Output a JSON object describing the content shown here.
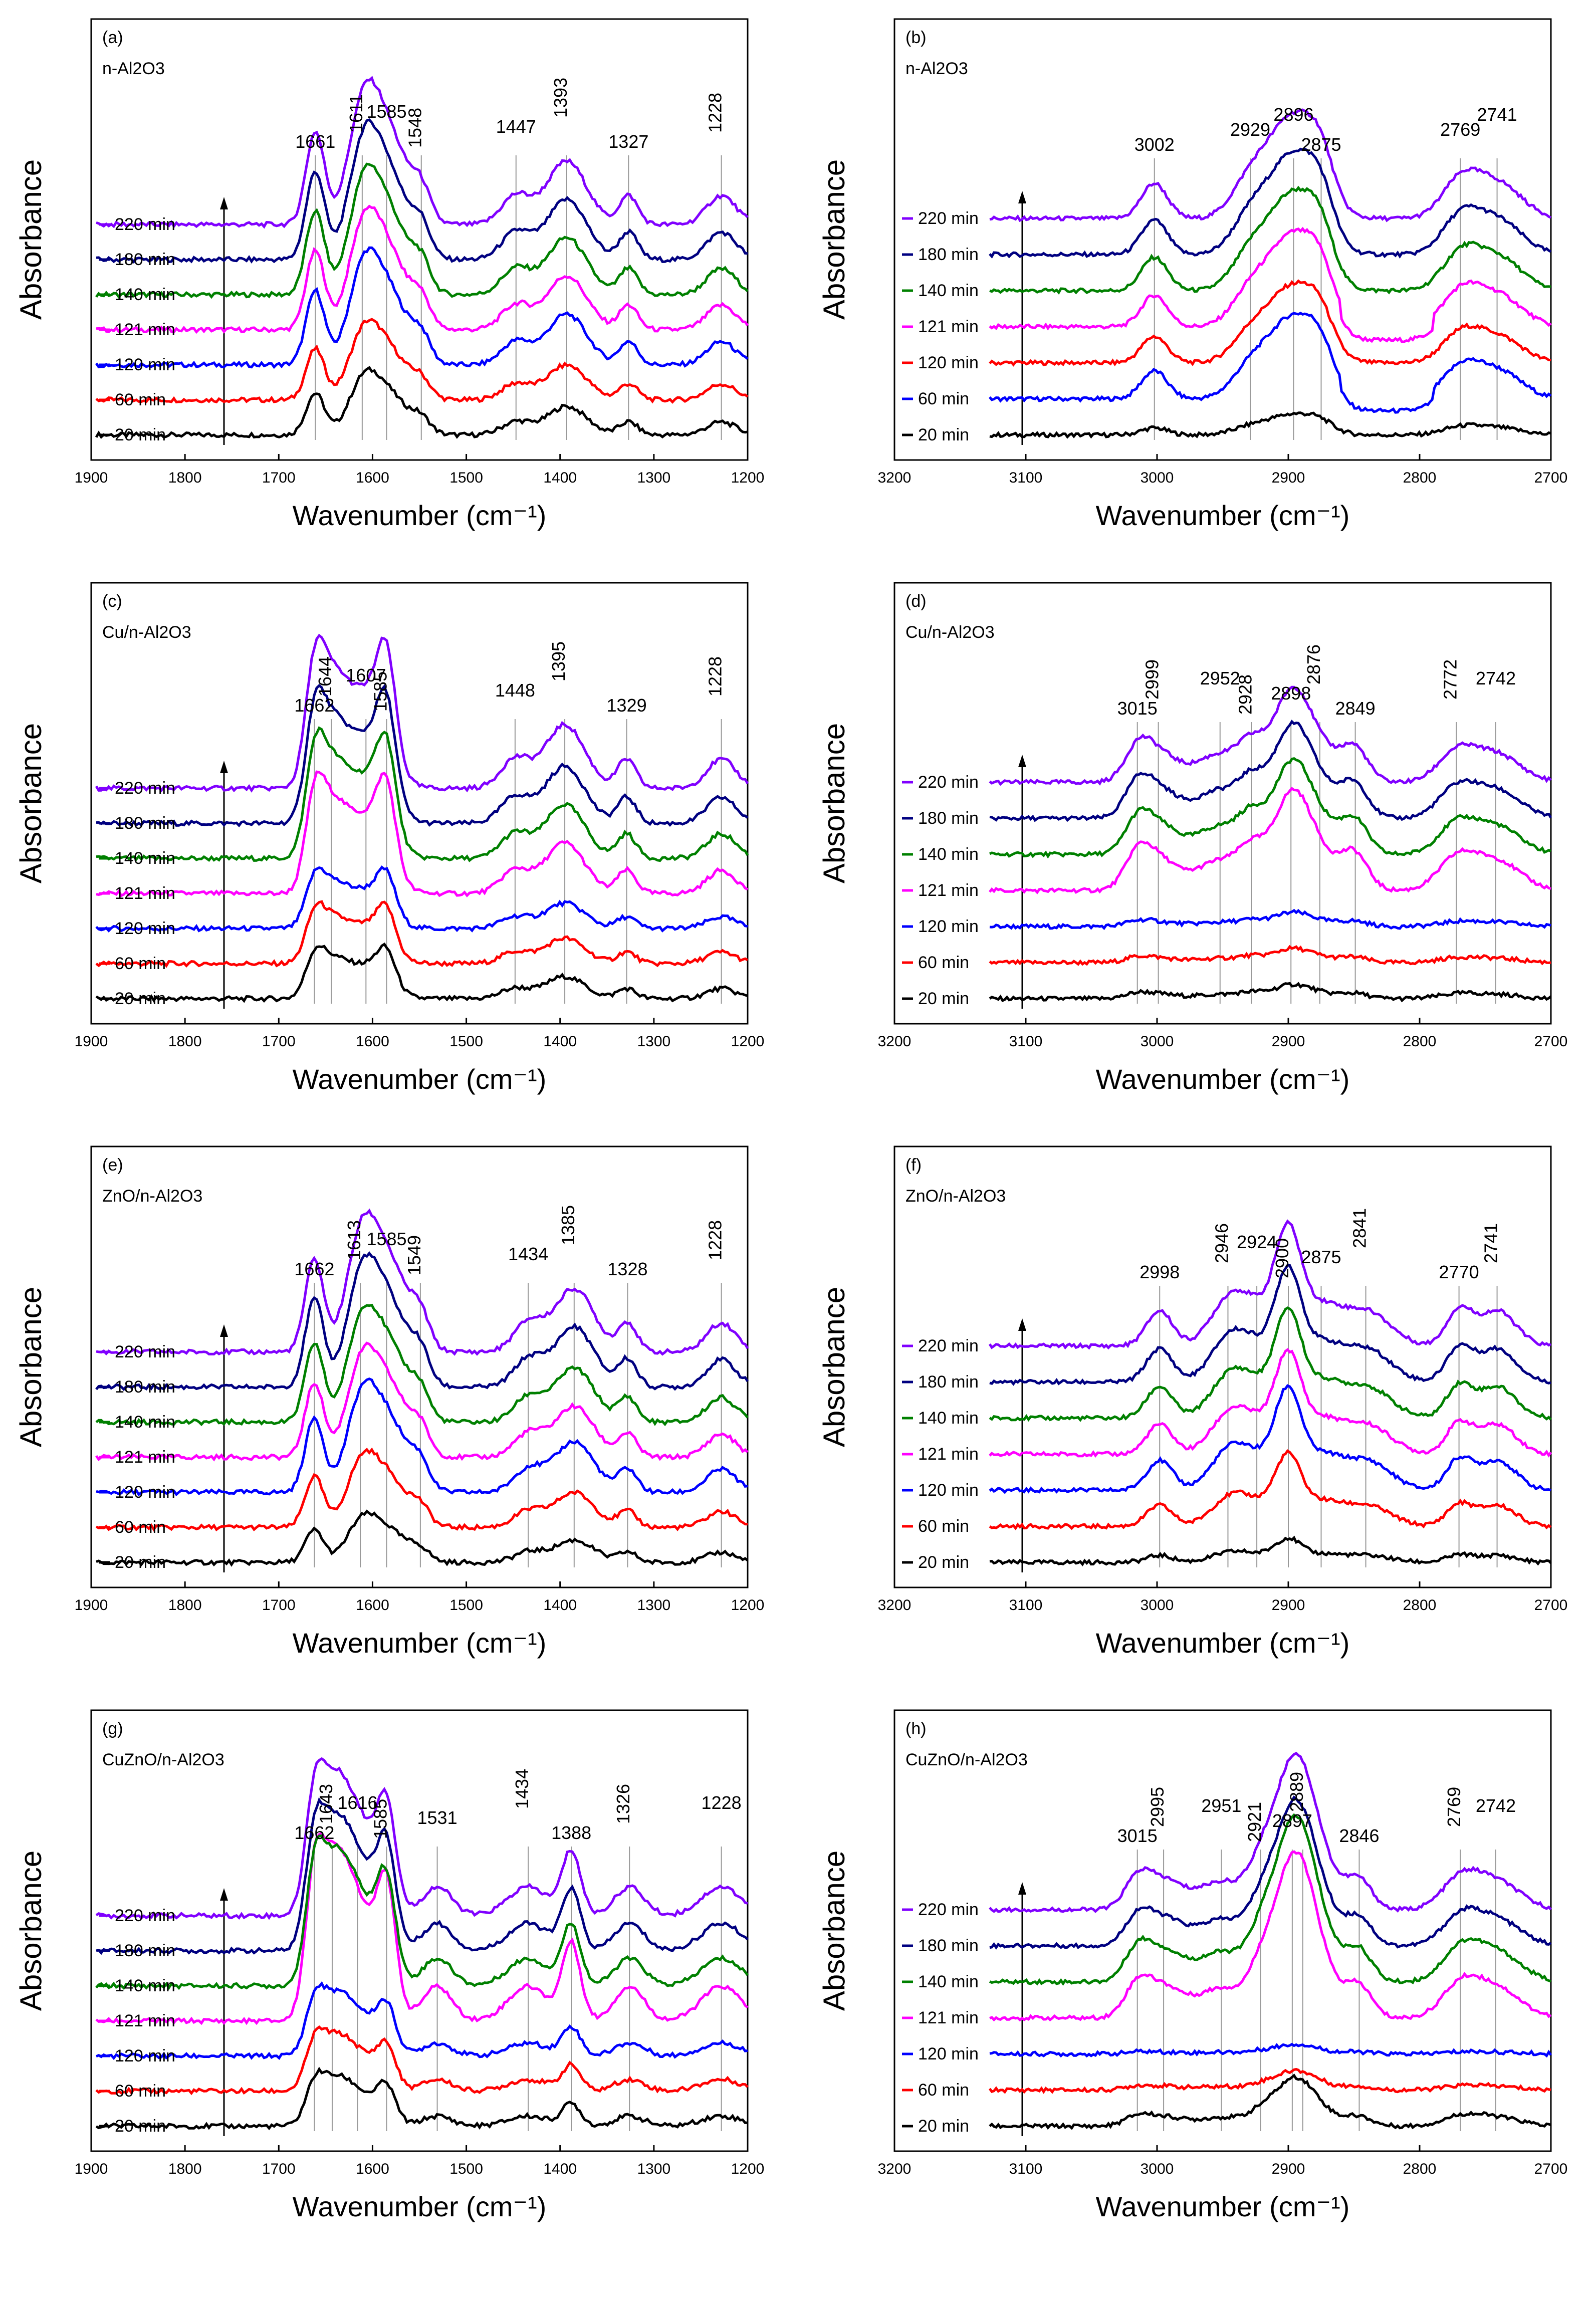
{
  "figure": {
    "title": ""
  },
  "chart_data": [
    {
      "type": "line",
      "panel": "(a)",
      "sample_text": "n-Al2O3",
      "x_range": [
        1900,
        1200
      ],
      "xticks": [
        1900,
        1800,
        1700,
        1600,
        1500,
        1400,
        1300,
        1200
      ],
      "xlabel": "Wavenumber (cm⁻¹)",
      "ylabel": "Absorbance",
      "peaks": [
        1661,
        1611,
        1585,
        1548,
        1447,
        1393,
        1327,
        1228
      ],
      "peak_label_rows": [
        [
          "1661",
          "1611"
        ],
        [
          "1585"
        ],
        [
          "1548"
        ],
        [
          "1447"
        ],
        [
          "1393"
        ],
        [
          "1327"
        ],
        [
          "1228"
        ]
      ],
      "series": [
        {
          "name": "20 min",
          "color": "#000000",
          "amp": 0.45,
          "drops": false
        },
        {
          "name": "60 min",
          "color": "#ff0000",
          "amp": 0.55,
          "drops": false
        },
        {
          "name": "120 min",
          "color": "#0000ff",
          "amp": 0.8,
          "drops": false
        },
        {
          "name": "121 min",
          "color": "#ff00ff",
          "amp": 0.85,
          "drops": false
        },
        {
          "name": "140 min",
          "color": "#008000",
          "amp": 0.9,
          "drops": false
        },
        {
          "name": "180 min",
          "color": "#000080",
          "amp": 0.95,
          "drops": false
        },
        {
          "name": "220 min",
          "color": "#8000ff",
          "amp": 1.0,
          "drops": false
        }
      ]
    },
    {
      "type": "line",
      "panel": "(b)",
      "sample_text": "n-Al2O3",
      "x_range": [
        3200,
        2700
      ],
      "xticks": [
        3200,
        3100,
        3000,
        2900,
        2800,
        2700
      ],
      "xlabel": "Wavenumber (cm⁻¹)",
      "ylabel": "Absorbance",
      "peaks": [
        3002,
        2929,
        2896,
        2875,
        2769,
        2741
      ],
      "series": [
        {
          "name": "20 min",
          "color": "#000000",
          "amp": 0.2,
          "drops": false
        },
        {
          "name": "60 min",
          "color": "#0000ff",
          "amp": 0.8,
          "drops": true
        },
        {
          "name": "120 min",
          "color": "#ff0000",
          "amp": 0.75,
          "drops": false
        },
        {
          "name": "121 min",
          "color": "#ff00ff",
          "amp": 0.9,
          "drops": true
        },
        {
          "name": "140 min",
          "color": "#008000",
          "amp": 0.95,
          "drops": false
        },
        {
          "name": "180 min",
          "color": "#000080",
          "amp": 0.98,
          "drops": false
        },
        {
          "name": "220 min",
          "color": "#8000ff",
          "amp": 1.0,
          "drops": false
        }
      ]
    },
    {
      "type": "line",
      "panel": "(c)",
      "sample_text": "Cu/n-Al2O3",
      "x_range": [
        1900,
        1200
      ],
      "xticks": [
        1900,
        1800,
        1700,
        1600,
        1500,
        1400,
        1300,
        1200
      ],
      "xlabel": "Wavenumber (cm⁻¹)",
      "ylabel": "Absorbance",
      "peaks": [
        1662,
        1644,
        1607,
        1585,
        1448,
        1395,
        1329,
        1228
      ],
      "series": [
        {
          "name": "20 min",
          "color": "#000000",
          "amp": 0.35,
          "drops": false
        },
        {
          "name": "60 min",
          "color": "#ff0000",
          "amp": 0.4,
          "drops": false
        },
        {
          "name": "120 min",
          "color": "#0000ff",
          "amp": 0.4,
          "drops": false
        },
        {
          "name": "121 min",
          "color": "#ff00ff",
          "amp": 0.8,
          "drops": false
        },
        {
          "name": "140 min",
          "color": "#008000",
          "amp": 0.85,
          "drops": false
        },
        {
          "name": "180 min",
          "color": "#000080",
          "amp": 0.9,
          "drops": false
        },
        {
          "name": "220 min",
          "color": "#8000ff",
          "amp": 1.0,
          "drops": false
        }
      ]
    },
    {
      "type": "line",
      "panel": "(d)",
      "sample_text": "Cu/n-Al2O3",
      "x_range": [
        3200,
        2700
      ],
      "xticks": [
        3200,
        3100,
        3000,
        2900,
        2800,
        2700
      ],
      "xlabel": "Wavenumber (cm⁻¹)",
      "ylabel": "Absorbance",
      "peaks": [
        3015,
        2999,
        2952,
        2928,
        2898,
        2876,
        2849,
        2772,
        2742
      ],
      "series": [
        {
          "name": "20 min",
          "color": "#000000",
          "amp": 0.12,
          "drops": false
        },
        {
          "name": "60 min",
          "color": "#ff0000",
          "amp": 0.12,
          "drops": false
        },
        {
          "name": "120 min",
          "color": "#0000ff",
          "amp": 0.12,
          "drops": false
        },
        {
          "name": "121 min",
          "color": "#ff00ff",
          "amp": 0.85,
          "drops": false
        },
        {
          "name": "140 min",
          "color": "#008000",
          "amp": 0.8,
          "drops": false
        },
        {
          "name": "180 min",
          "color": "#000080",
          "amp": 0.8,
          "drops": false
        },
        {
          "name": "220 min",
          "color": "#8000ff",
          "amp": 0.8,
          "drops": false
        }
      ]
    },
    {
      "type": "line",
      "panel": "(e)",
      "sample_text": "ZnO/n-Al2O3",
      "x_range": [
        1900,
        1200
      ],
      "xticks": [
        1900,
        1800,
        1700,
        1600,
        1500,
        1400,
        1300,
        1200
      ],
      "xlabel": "Wavenumber (cm⁻¹)",
      "ylabel": "Absorbance",
      "peaks": [
        1662,
        1613,
        1585,
        1549,
        1434,
        1385,
        1328,
        1228
      ],
      "series": [
        {
          "name": "20 min",
          "color": "#000000",
          "amp": 0.35,
          "drops": false
        },
        {
          "name": "60 min",
          "color": "#ff0000",
          "amp": 0.55,
          "drops": false
        },
        {
          "name": "120 min",
          "color": "#0000ff",
          "amp": 0.8,
          "drops": false
        },
        {
          "name": "121 min",
          "color": "#ff00ff",
          "amp": 0.8,
          "drops": false
        },
        {
          "name": "140 min",
          "color": "#008000",
          "amp": 0.85,
          "drops": false
        },
        {
          "name": "180 min",
          "color": "#000080",
          "amp": 0.95,
          "drops": false
        },
        {
          "name": "220 min",
          "color": "#8000ff",
          "amp": 1.0,
          "drops": false
        }
      ]
    },
    {
      "type": "line",
      "panel": "(f)",
      "sample_text": "ZnO/n-Al2O3",
      "x_range": [
        3200,
        2700
      ],
      "xticks": [
        3200,
        3100,
        3000,
        2900,
        2800,
        2700
      ],
      "xlabel": "Wavenumber (cm⁻¹)",
      "ylabel": "Absorbance",
      "peaks": [
        2998,
        2946,
        2924,
        2900,
        2875,
        2841,
        2770,
        2741
      ],
      "series": [
        {
          "name": "20 min",
          "color": "#000000",
          "amp": 0.2,
          "drops": false
        },
        {
          "name": "60 min",
          "color": "#ff0000",
          "amp": 0.6,
          "drops": false
        },
        {
          "name": "120 min",
          "color": "#0000ff",
          "amp": 0.85,
          "drops": false
        },
        {
          "name": "121 min",
          "color": "#ff00ff",
          "amp": 0.85,
          "drops": false
        },
        {
          "name": "140 min",
          "color": "#008000",
          "amp": 0.9,
          "drops": false
        },
        {
          "name": "180 min",
          "color": "#000080",
          "amp": 0.95,
          "drops": false
        },
        {
          "name": "220 min",
          "color": "#8000ff",
          "amp": 1.0,
          "drops": false
        }
      ]
    },
    {
      "type": "line",
      "panel": "(g)",
      "sample_text": "CuZnO/n-Al2O3",
      "x_range": [
        1900,
        1200
      ],
      "xticks": [
        1900,
        1800,
        1700,
        1600,
        1500,
        1400,
        1300,
        1200
      ],
      "xlabel": "Wavenumber (cm⁻¹)",
      "ylabel": "Absorbance",
      "peaks": [
        1662,
        1643,
        1616,
        1585,
        1531,
        1434,
        1388,
        1326,
        1228
      ],
      "series": [
        {
          "name": "20 min",
          "color": "#000000",
          "amp": 0.35,
          "drops": false
        },
        {
          "name": "60 min",
          "color": "#ff0000",
          "amp": 0.4,
          "drops": false
        },
        {
          "name": "120 min",
          "color": "#0000ff",
          "amp": 0.45,
          "drops": false
        },
        {
          "name": "121 min",
          "color": "#ff00ff",
          "amp": 1.2,
          "drops": false
        },
        {
          "name": "140 min",
          "color": "#008000",
          "amp": 0.95,
          "drops": false
        },
        {
          "name": "180 min",
          "color": "#000080",
          "amp": 0.95,
          "drops": false
        },
        {
          "name": "220 min",
          "color": "#8000ff",
          "amp": 1.0,
          "drops": false
        }
      ]
    },
    {
      "type": "line",
      "panel": "(h)",
      "sample_text": "CuZnO/n-Al2O3",
      "x_range": [
        3200,
        2700
      ],
      "xticks": [
        3200,
        3100,
        3000,
        2900,
        2800,
        2700
      ],
      "xlabel": "Wavenumber (cm⁻¹)",
      "ylabel": "Absorbance",
      "peaks": [
        3015,
        2995,
        2951,
        2921,
        2897,
        2889,
        2846,
        2769,
        2742
      ],
      "series": [
        {
          "name": "20 min",
          "color": "#000000",
          "amp": 0.25,
          "drops": false
        },
        {
          "name": "60 min",
          "color": "#ff0000",
          "amp": 0.1,
          "drops": false
        },
        {
          "name": "120 min",
          "color": "#0000ff",
          "amp": 0.05,
          "drops": false
        },
        {
          "name": "121 min",
          "color": "#ff00ff",
          "amp": 0.85,
          "drops": false
        },
        {
          "name": "140 min",
          "color": "#008000",
          "amp": 0.85,
          "drops": false
        },
        {
          "name": "180 min",
          "color": "#000080",
          "amp": 0.75,
          "drops": false
        },
        {
          "name": "220 min",
          "color": "#8000ff",
          "amp": 0.8,
          "drops": false
        }
      ]
    }
  ]
}
